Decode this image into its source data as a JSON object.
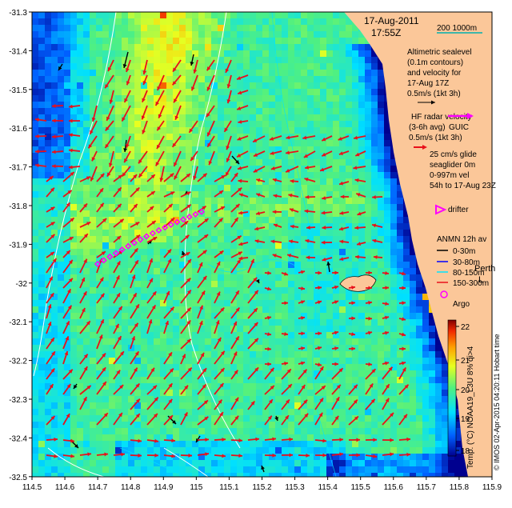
{
  "header": {
    "date": "17-Aug-2011",
    "time": "17:55Z",
    "scale_label": "200  1000m"
  },
  "axes": {
    "y_ticks": [
      "-31.3",
      "-31.4",
      "-31.5",
      "-31.6",
      "-31.7",
      "-31.8",
      "-31.9",
      "-32",
      "-32.1",
      "-32.2",
      "-32.3",
      "-32.4",
      "-32.5"
    ],
    "x_ticks": [
      "114.5",
      "114.6",
      "114.7",
      "114.8",
      "114.9",
      "115",
      "115.1",
      "115.2",
      "115.3",
      "115.4",
      "115.5",
      "115.6",
      "115.7",
      "115.8",
      "115.9"
    ]
  },
  "legend": {
    "altimetric": [
      "Altimetric sealevel",
      "(0.1m contours)",
      "and velocity for",
      "17-Aug 17Z",
      "0.5m/s (1kt 3h)"
    ],
    "hf_radar": [
      "HF radar velocity",
      "(3-6h avg)",
      "0.5m/s (1kt 3h)"
    ],
    "hf_overlap": "GUIC",
    "glider": [
      "25 cm/s glide",
      "seaglider 0m",
      "0-997m vel",
      "54h to 17-Aug 23Z"
    ],
    "drifter": "drifter",
    "anmn": {
      "title": "ANMN 12h av",
      "depths": [
        "0-30m",
        "30-80m",
        "80-150m",
        "150-300m"
      ],
      "overlap_a": "Perth",
      "overlap_b": "L"
    },
    "argo": "Argo"
  },
  "colorbar": {
    "ticks": [
      "22",
      "21",
      "20",
      "19",
      "18"
    ],
    "label": "Temp. (°C) NOAA19_L3U 8% qi>4"
  },
  "credit": "© IMOS 02-Apr-2015 04:20:11 Hobart time",
  "colors": {
    "land": "#fbc799",
    "hf_arrow": "#e8101a",
    "alt_arrow": "#000000",
    "glider": "#ff00ff",
    "drifter": "#ff00ff"
  },
  "map_data": {
    "lon_range": [
      114.5,
      115.9
    ],
    "lat_range": [
      -32.5,
      -31.3
    ],
    "sst_range_c": [
      17.4,
      22.6
    ]
  }
}
